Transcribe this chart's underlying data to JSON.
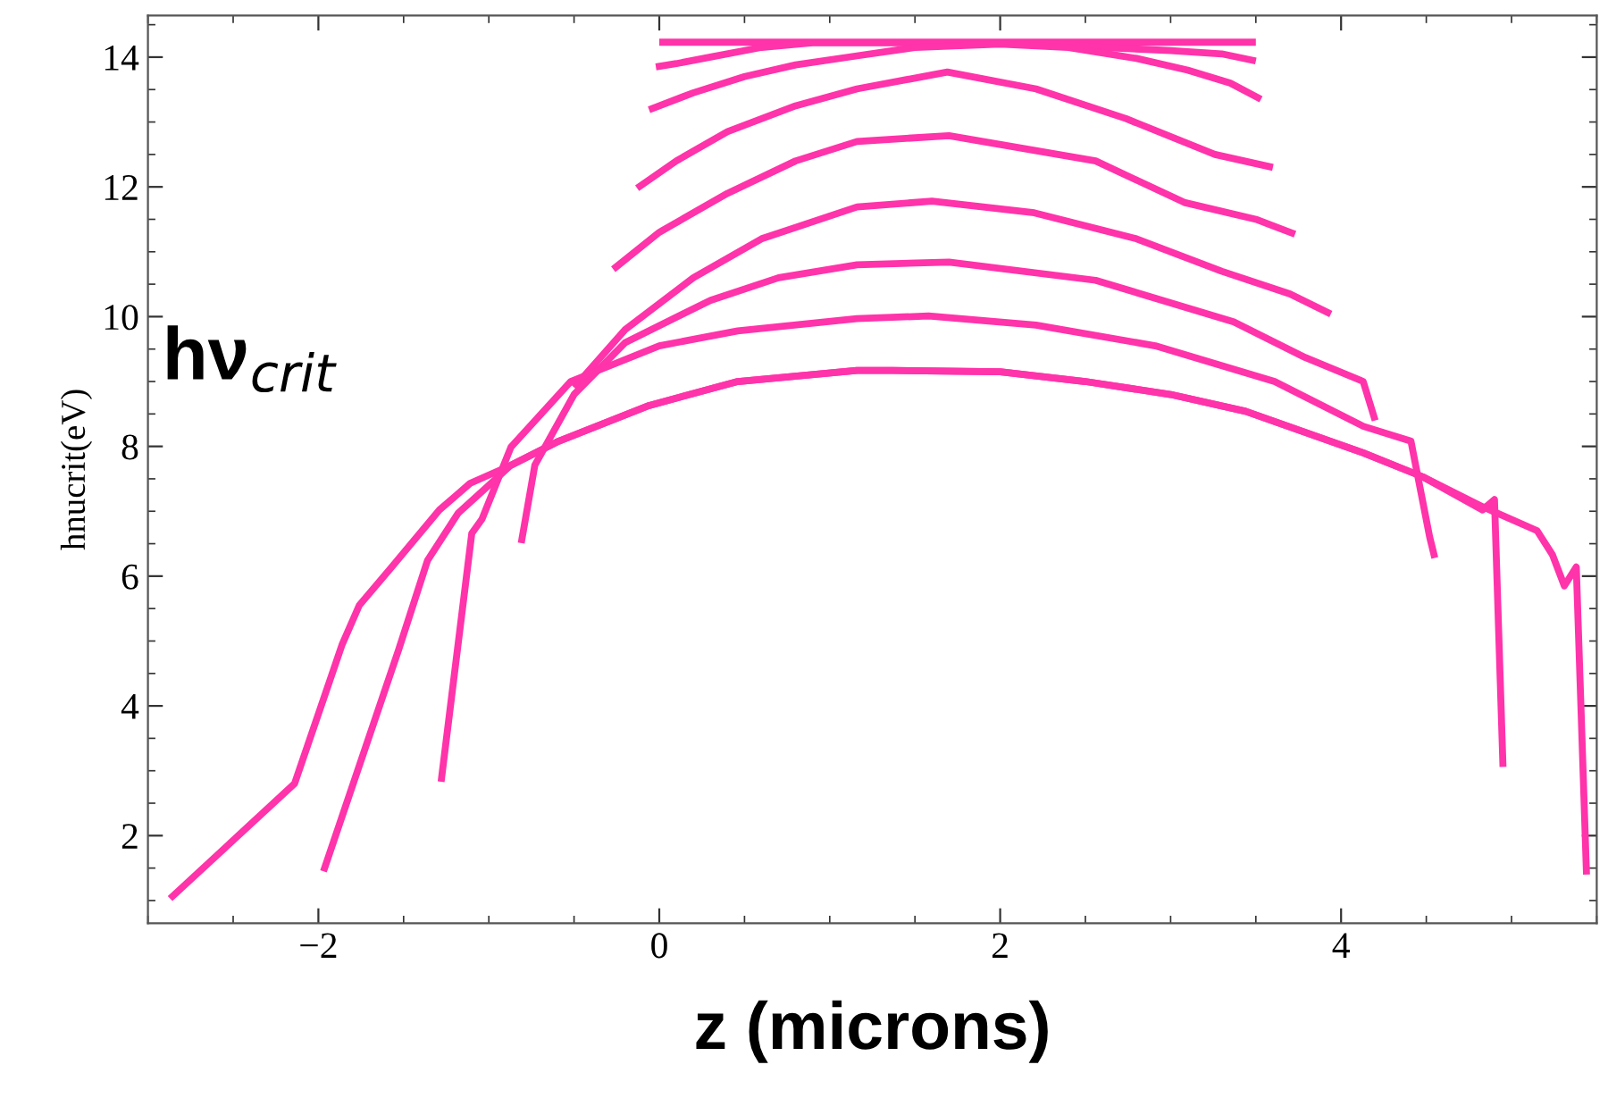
{
  "chart_data": {
    "type": "line",
    "xlabel": "z (microns)",
    "ylabel": "hnucrit(eV)",
    "annotations": [
      "hν$_{crit}$"
    ],
    "xlim": [
      -3.0,
      5.5
    ],
    "ylim": [
      0.65,
      14.64
    ],
    "xticks": [
      {
        "value": -2,
        "label": "−2"
      },
      0,
      2,
      4
    ],
    "yticks": [
      2,
      4,
      6,
      8,
      10,
      12,
      14
    ],
    "series": [
      {
        "color": "#ff33aa",
        "x": [
          0,
          3.5
        ],
        "values": [
          14.23,
          14.23
        ]
      },
      {
        "color": "#ff33aa",
        "x": [
          -0.02,
          0.1,
          0.3,
          0.6,
          0.9,
          2.2,
          2.6,
          3.0,
          3.3,
          3.5
        ],
        "values": [
          13.85,
          13.9,
          14.0,
          14.15,
          14.22,
          14.22,
          14.15,
          14.1,
          14.05,
          13.94
        ]
      },
      {
        "color": "#ff33aa",
        "x": [
          -0.06,
          0.2,
          0.5,
          0.8,
          1.16,
          1.5,
          2.0,
          2.4,
          2.8,
          3.1,
          3.35,
          3.53
        ],
        "values": [
          13.19,
          13.45,
          13.7,
          13.88,
          14.02,
          14.15,
          14.2,
          14.15,
          13.98,
          13.8,
          13.6,
          13.35
        ]
      },
      {
        "color": "#ff33aa",
        "x": [
          -0.13,
          0.1,
          0.4,
          0.8,
          1.16,
          1.69,
          2.21,
          2.74,
          3.26,
          3.6
        ],
        "values": [
          11.98,
          12.4,
          12.85,
          13.25,
          13.51,
          13.77,
          13.51,
          13.05,
          12.5,
          12.3
        ]
      },
      {
        "color": "#ff33aa",
        "x": [
          -0.27,
          0,
          0.4,
          0.8,
          1.16,
          1.7,
          2.56,
          3.08,
          3.5,
          3.73
        ],
        "values": [
          10.73,
          11.3,
          11.9,
          12.4,
          12.7,
          12.79,
          12.4,
          11.76,
          11.5,
          11.27
        ]
      },
      {
        "color": "#ff33aa",
        "x": [
          -0.5,
          -0.2,
          0.2,
          0.6,
          1.16,
          1.6,
          2.2,
          2.8,
          3.3,
          3.7,
          3.94
        ],
        "values": [
          8.91,
          9.8,
          10.6,
          11.2,
          11.69,
          11.78,
          11.6,
          11.2,
          10.7,
          10.35,
          10.04
        ]
      },
      {
        "color": "#ff33aa",
        "x": [
          -0.81,
          -0.73,
          -0.5,
          -0.2,
          0.3,
          0.7,
          1.16,
          1.7,
          2.56,
          3.37,
          3.79,
          4.13,
          4.2
        ],
        "values": [
          6.51,
          7.71,
          8.8,
          9.6,
          10.25,
          10.6,
          10.8,
          10.84,
          10.56,
          9.92,
          9.37,
          9.0,
          8.4
        ]
      },
      {
        "color": "#ff33aa",
        "x": [
          -1.28,
          -1.1,
          -1.04,
          -0.87,
          -0.52,
          0,
          0.46,
          1.16,
          1.58,
          2.21,
          2.91,
          3.61,
          4.13,
          4.41,
          4.52,
          4.55
        ],
        "values": [
          2.83,
          6.66,
          6.88,
          7.99,
          9.0,
          9.55,
          9.78,
          9.97,
          10.01,
          9.87,
          9.55,
          9.0,
          8.31,
          8.08,
          6.6,
          6.28
        ]
      },
      {
        "color": "#ff33aa",
        "x": [
          -1.97,
          -1.53,
          -1.36,
          -1.18,
          -0.87,
          -0.59,
          -0.06,
          0.46,
          1.16,
          1.37,
          2.0,
          2.5,
          3.0,
          3.44,
          4.13,
          4.48,
          4.83,
          4.9,
          4.95
        ],
        "values": [
          1.45,
          4.86,
          6.24,
          6.97,
          7.71,
          8.08,
          8.63,
          9.0,
          9.17,
          9.17,
          9.15,
          9.0,
          8.8,
          8.54,
          7.9,
          7.53,
          7.02,
          7.18,
          3.06
        ]
      },
      {
        "color": "#ff33aa",
        "x": [
          -2.87,
          -2.14,
          -1.86,
          -1.76,
          -1.57,
          -1.29,
          -1.11,
          -0.87,
          -0.59,
          -0.06,
          0.46,
          1.16,
          1.37,
          2.0,
          2.5,
          3.0,
          3.44,
          4.13,
          4.48,
          4.83,
          5.15,
          5.24,
          5.31,
          5.38,
          5.44
        ],
        "values": [
          1.03,
          2.8,
          4.95,
          5.55,
          6.14,
          7.02,
          7.43,
          7.71,
          8.08,
          8.63,
          9.0,
          9.17,
          9.17,
          9.15,
          9.0,
          8.8,
          8.54,
          7.9,
          7.53,
          7.07,
          6.7,
          6.33,
          5.85,
          6.14,
          1.4
        ]
      }
    ]
  }
}
